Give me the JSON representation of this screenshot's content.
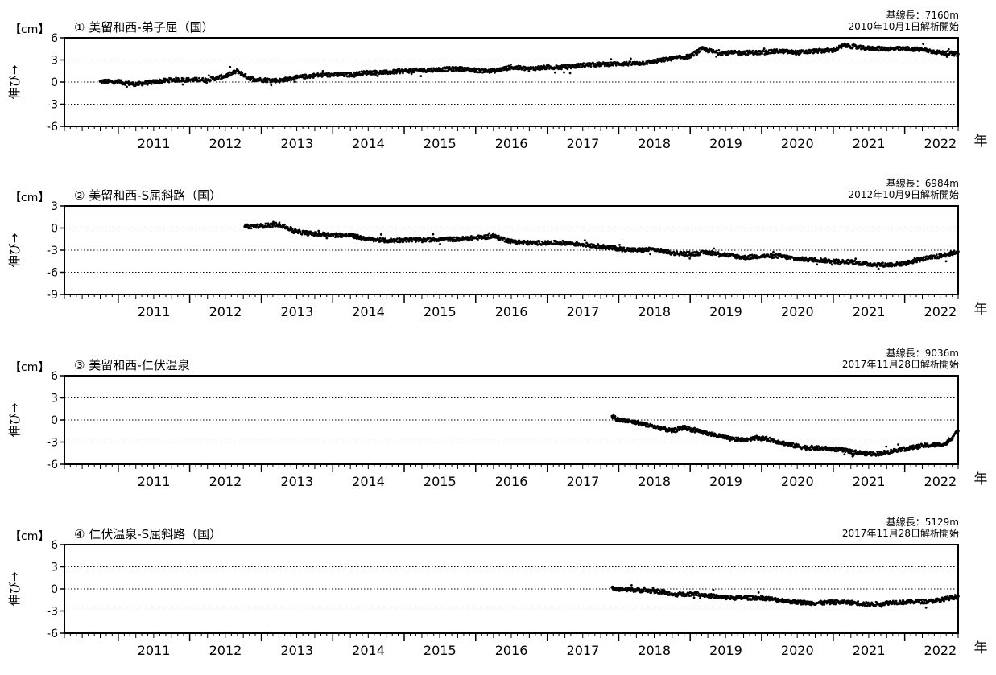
{
  "figure": {
    "unit_label": "【cm】",
    "ylabel": "伸び→",
    "year_label": "年",
    "year_ticks": [
      "2011",
      "2012",
      "2013",
      "2014",
      "2015",
      "2016",
      "2017",
      "2018",
      "2019",
      "2020",
      "2021",
      "2022"
    ],
    "x_range": [
      "2010-04-01",
      "2022-10-01"
    ],
    "dotted_gridlines": true,
    "marker_color": "#000000"
  },
  "chart_data": [
    {
      "type": "scatter",
      "title": "① 美留和西-弟子屈（国）",
      "baseline": "基線長：7160m",
      "start_note": "2010年10月1日解析開始",
      "ylabel": "伸び→",
      "ylim": [
        -6,
        6
      ],
      "yticks": [
        "6",
        "3",
        "0",
        "-3",
        "-6"
      ],
      "x": [
        "2010-10-01",
        "2011-01-01",
        "2011-04-01",
        "2011-07-01",
        "2011-10-01",
        "2012-01-01",
        "2012-04-01",
        "2012-07-01",
        "2012-09-01",
        "2012-11-01",
        "2013-01-01",
        "2013-04-01",
        "2013-07-01",
        "2013-10-01",
        "2014-01-01",
        "2014-04-01",
        "2014-07-01",
        "2014-10-01",
        "2015-01-01",
        "2015-04-01",
        "2015-07-01",
        "2015-10-01",
        "2016-01-01",
        "2016-04-01",
        "2016-07-01",
        "2016-10-01",
        "2017-01-01",
        "2017-04-01",
        "2017-07-01",
        "2017-10-01",
        "2018-01-01",
        "2018-04-01",
        "2018-07-01",
        "2018-10-01",
        "2019-01-01",
        "2019-03-01",
        "2019-06-01",
        "2019-10-01",
        "2020-01-01",
        "2020-04-01",
        "2020-07-01",
        "2020-10-01",
        "2021-01-01",
        "2021-03-01",
        "2021-06-01",
        "2021-10-01",
        "2022-01-01",
        "2022-04-01",
        "2022-07-01",
        "2022-10-01"
      ],
      "y": [
        0.1,
        0.0,
        -0.3,
        0.0,
        0.3,
        0.3,
        0.3,
        0.8,
        1.5,
        0.5,
        0.3,
        0.2,
        0.6,
        0.9,
        1.0,
        1.0,
        1.3,
        1.3,
        1.5,
        1.6,
        1.7,
        1.8,
        1.6,
        1.5,
        2.0,
        1.8,
        2.0,
        2.0,
        2.3,
        2.4,
        2.5,
        2.5,
        2.8,
        3.2,
        3.5,
        4.5,
        3.9,
        4.0,
        4.0,
        4.2,
        4.0,
        4.2,
        4.3,
        5.0,
        4.6,
        4.5,
        4.5,
        4.4,
        4.0,
        3.8
      ]
    },
    {
      "type": "scatter",
      "title": "② 美留和西-S屈斜路（国）",
      "baseline": "基線長：6984m",
      "start_note": "2012年10月9日解析開始",
      "ylabel": "伸び→",
      "ylim": [
        -9,
        3
      ],
      "yticks": [
        "3",
        "0",
        "-3",
        "-6",
        "-9"
      ],
      "x": [
        "2012-10-09",
        "2013-01-01",
        "2013-04-01",
        "2013-07-01",
        "2013-10-01",
        "2014-01-01",
        "2014-04-01",
        "2014-07-01",
        "2014-10-01",
        "2015-01-01",
        "2015-04-01",
        "2015-07-01",
        "2015-10-01",
        "2016-01-01",
        "2016-04-01",
        "2016-07-01",
        "2016-10-01",
        "2017-01-01",
        "2017-04-01",
        "2017-07-01",
        "2017-10-01",
        "2018-01-01",
        "2018-04-01",
        "2018-07-01",
        "2018-10-01",
        "2019-01-01",
        "2019-04-01",
        "2019-07-01",
        "2019-10-01",
        "2020-01-01",
        "2020-04-01",
        "2020-07-01",
        "2020-10-01",
        "2021-01-01",
        "2021-04-01",
        "2021-07-01",
        "2021-10-01",
        "2022-01-01",
        "2022-04-01",
        "2022-07-01",
        "2022-10-01"
      ],
      "y": [
        0.2,
        0.3,
        0.5,
        -0.5,
        -0.8,
        -0.9,
        -1.0,
        -1.5,
        -1.7,
        -1.6,
        -1.6,
        -1.5,
        -1.5,
        -1.3,
        -1.1,
        -1.8,
        -2.0,
        -2.0,
        -2.0,
        -2.2,
        -2.5,
        -2.8,
        -3.0,
        -2.9,
        -3.4,
        -3.5,
        -3.3,
        -3.6,
        -4.0,
        -3.8,
        -3.8,
        -4.2,
        -4.3,
        -4.5,
        -4.6,
        -4.9,
        -5.0,
        -4.8,
        -4.2,
        -3.8,
        -3.2
      ]
    },
    {
      "type": "scatter",
      "title": "③ 美留和西-仁伏温泉",
      "baseline": "基線長：9036m",
      "start_note": "2017年11月28日解析開始",
      "ylabel": "伸び→",
      "ylim": [
        -6,
        6
      ],
      "yticks": [
        "6",
        "3",
        "0",
        "-3",
        "-6"
      ],
      "x": [
        "2017-11-28",
        "2018-01-01",
        "2018-03-01",
        "2018-05-01",
        "2018-07-01",
        "2018-08-20",
        "2018-10-01",
        "2018-12-01",
        "2019-02-01",
        "2019-04-01",
        "2019-06-01",
        "2019-08-01",
        "2019-10-01",
        "2019-12-01",
        "2020-02-01",
        "2020-04-01",
        "2020-06-01",
        "2020-08-01",
        "2020-10-01",
        "2020-12-01",
        "2021-02-01",
        "2021-04-01",
        "2021-06-01",
        "2021-08-01",
        "2021-10-01",
        "2021-12-01",
        "2022-02-01",
        "2022-04-01",
        "2022-06-01",
        "2022-08-01",
        "2022-10-01"
      ],
      "y": [
        0.5,
        0.0,
        -0.2,
        -0.5,
        -0.9,
        -1.2,
        -1.5,
        -1.0,
        -1.5,
        -1.8,
        -2.2,
        -2.6,
        -2.7,
        -2.4,
        -2.6,
        -3.0,
        -3.4,
        -3.7,
        -3.8,
        -3.9,
        -4.0,
        -4.3,
        -4.5,
        -4.6,
        -4.4,
        -4.0,
        -3.8,
        -3.5,
        -3.4,
        -3.2,
        -1.5
      ]
    },
    {
      "type": "scatter",
      "title": "④ 仁伏温泉-S屈斜路（国）",
      "baseline": "基線長：5129m",
      "start_note": "2017年11月28日解析開始",
      "ylabel": "伸び→",
      "ylim": [
        -6,
        6
      ],
      "yticks": [
        "6",
        "3",
        "0",
        "-3",
        "-6"
      ],
      "x": [
        "2017-11-28",
        "2018-01-01",
        "2018-03-01",
        "2018-05-01",
        "2018-07-01",
        "2018-08-20",
        "2018-10-01",
        "2018-12-01",
        "2019-02-01",
        "2019-04-01",
        "2019-06-01",
        "2019-08-01",
        "2019-10-01",
        "2020-01-01",
        "2020-03-01",
        "2020-05-01",
        "2020-07-01",
        "2020-09-01",
        "2020-11-01",
        "2021-01-01",
        "2021-03-01",
        "2021-05-01",
        "2021-07-01",
        "2021-09-01",
        "2021-11-01",
        "2022-01-01",
        "2022-03-01",
        "2022-05-01",
        "2022-07-01",
        "2022-10-01"
      ],
      "y": [
        0.2,
        0.0,
        -0.1,
        -0.2,
        -0.3,
        -0.4,
        -0.8,
        -0.7,
        -0.6,
        -0.9,
        -1.1,
        -1.2,
        -1.2,
        -1.2,
        -1.4,
        -1.6,
        -1.8,
        -1.9,
        -1.9,
        -1.8,
        -1.8,
        -1.9,
        -2.1,
        -2.0,
        -1.8,
        -1.8,
        -1.7,
        -1.7,
        -1.5,
        -1.0
      ]
    }
  ]
}
